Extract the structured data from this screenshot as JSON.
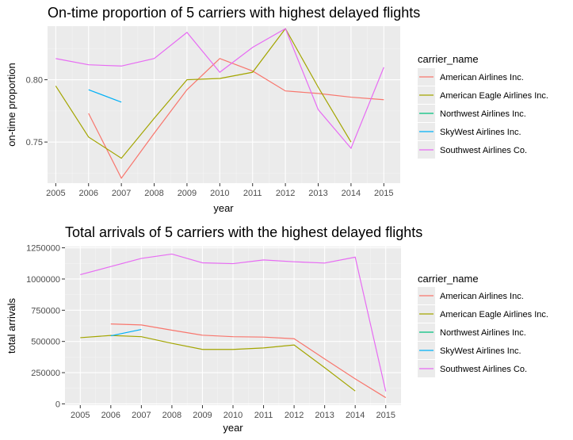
{
  "chart_data": [
    {
      "type": "line",
      "title": "On-time proportion of 5 carriers with highest delayed flights",
      "xlabel": "year",
      "ylabel": "on-time proportion",
      "x": [
        2005,
        2006,
        2007,
        2008,
        2009,
        2010,
        2011,
        2012,
        2013,
        2014,
        2015
      ],
      "xlim": [
        2004.75,
        2015.5
      ],
      "ylim": [
        0.717,
        0.843
      ],
      "yticks": [
        0.75,
        0.8
      ],
      "ytick_labels": [
        "0.75",
        "0.80"
      ],
      "grid": true,
      "legend": {
        "title": "carrier_name",
        "placement": "right"
      },
      "series": [
        {
          "name": "American Airlines Inc.",
          "color": "#F8766D",
          "values": [
            null,
            0.773,
            0.721,
            0.757,
            0.792,
            0.817,
            0.807,
            0.791,
            0.789,
            0.786,
            0.784
          ]
        },
        {
          "name": "American Eagle Airlines Inc.",
          "color": "#A3A500",
          "values": [
            0.795,
            0.754,
            0.737,
            0.769,
            0.8,
            0.801,
            0.806,
            0.841,
            0.794,
            0.75,
            null
          ]
        },
        {
          "name": "Northwest Airlines Inc.",
          "color": "#00BF7D",
          "values": [
            null,
            null,
            null,
            null,
            null,
            null,
            null,
            null,
            null,
            null,
            null
          ]
        },
        {
          "name": "SkyWest Airlines Inc.",
          "color": "#00B0F6",
          "values": [
            null,
            0.792,
            0.782,
            null,
            null,
            null,
            null,
            null,
            null,
            null,
            null
          ]
        },
        {
          "name": "Southwest Airlines Co.",
          "color": "#E76BF3",
          "values": [
            0.817,
            0.812,
            0.811,
            0.817,
            0.838,
            0.806,
            0.826,
            0.841,
            0.776,
            0.745,
            0.81
          ]
        }
      ]
    },
    {
      "type": "line",
      "title": "Total arrivals of 5 carriers with the highest delayed flights",
      "xlabel": "year",
      "ylabel": "total arrivals",
      "x": [
        2005,
        2006,
        2007,
        2008,
        2009,
        2010,
        2011,
        2012,
        2013,
        2014,
        2015
      ],
      "xlim": [
        2004.5,
        2015.5
      ],
      "ylim": [
        -10000,
        1260000
      ],
      "yticks": [
        0,
        250000,
        500000,
        750000,
        1000000,
        1250000
      ],
      "ytick_labels": [
        "0",
        "250000",
        "500000",
        "750000",
        "1000000",
        "1250000"
      ],
      "grid": true,
      "legend": {
        "title": "carrier_name",
        "placement": "right"
      },
      "series": [
        {
          "name": "American Airlines Inc.",
          "color": "#F8766D",
          "values": [
            null,
            640000,
            632000,
            590000,
            550000,
            538000,
            535000,
            522000,
            360000,
            200000,
            50000
          ]
        },
        {
          "name": "American Eagle Airlines Inc.",
          "color": "#A3A500",
          "values": [
            530000,
            548000,
            538000,
            485000,
            436000,
            436000,
            448000,
            472000,
            290000,
            103000,
            null
          ]
        },
        {
          "name": "Northwest Airlines Inc.",
          "color": "#00BF7D",
          "values": [
            null,
            null,
            null,
            null,
            null,
            null,
            null,
            null,
            null,
            null,
            null
          ]
        },
        {
          "name": "SkyWest Airlines Inc.",
          "color": "#00B0F6",
          "values": [
            null,
            545000,
            596000,
            null,
            null,
            null,
            null,
            null,
            null,
            null,
            null
          ]
        },
        {
          "name": "Southwest Airlines Co.",
          "color": "#E76BF3",
          "values": [
            1035000,
            1100000,
            1165000,
            1200000,
            1130000,
            1123000,
            1153000,
            1138000,
            1128000,
            1175000,
            100000
          ]
        }
      ]
    }
  ]
}
